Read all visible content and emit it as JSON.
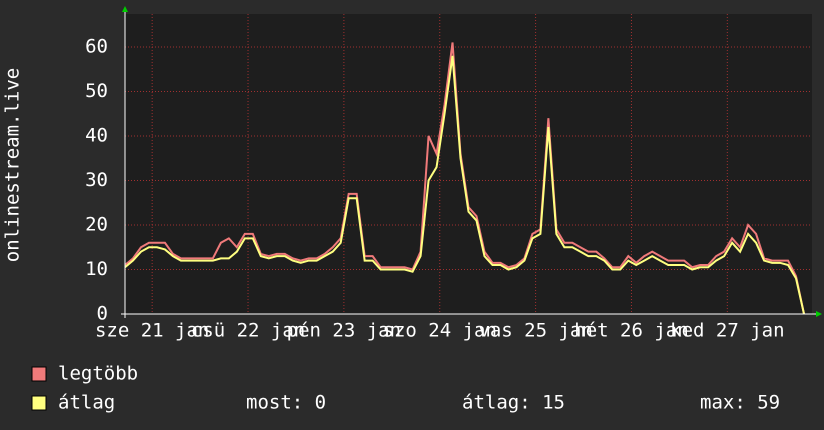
{
  "chart_data": {
    "type": "line",
    "y_label": "onlinestream.live",
    "xlim": [
      0,
      86
    ],
    "xticks": [
      {
        "value": 3.4,
        "label": "sze 21 jan"
      },
      {
        "value": 15.4,
        "label": "csü 22 jan"
      },
      {
        "value": 27.4,
        "label": "pén 23 jan"
      },
      {
        "value": 39.4,
        "label": "szo 24 jan"
      },
      {
        "value": 51.4,
        "label": "vas 25 jan"
      },
      {
        "value": 63.4,
        "label": "hét 26 jan"
      },
      {
        "value": 75.4,
        "label": "ked 27 jan"
      }
    ],
    "ylim": [
      0,
      67.4
    ],
    "yticks": [
      0,
      10,
      20,
      30,
      40,
      50,
      60
    ],
    "grid": true,
    "series": [
      {
        "name": "legtöbb",
        "color": "#f07a7a",
        "values": [
          11,
          12.5,
          15,
          16,
          16,
          16,
          13.5,
          12.5,
          12.5,
          12.5,
          12.5,
          12.5,
          16,
          17,
          15,
          18,
          18,
          13.5,
          13,
          13.5,
          13.5,
          12.5,
          12,
          12.5,
          12.5,
          13.5,
          15,
          17,
          27,
          27,
          13,
          13,
          10.5,
          10.5,
          10.5,
          10.5,
          10,
          14,
          40,
          36,
          47,
          61,
          36,
          24,
          22,
          14,
          11.5,
          11.5,
          10.5,
          11,
          12.5,
          18,
          19,
          44,
          19,
          16,
          16,
          15,
          14,
          14,
          12.5,
          10.5,
          10.5,
          13,
          11.5,
          13,
          14,
          13,
          12,
          12,
          12,
          10.5,
          11,
          11,
          13,
          14,
          17,
          15,
          20,
          18,
          12.5,
          12,
          12,
          12,
          8.5,
          0
        ]
      },
      {
        "name": "átlag",
        "color": "#ffff80",
        "values": [
          10.5,
          12,
          14,
          15,
          15,
          14.5,
          13,
          12,
          12,
          12,
          12,
          12,
          12.5,
          12.5,
          14,
          17,
          17,
          13,
          12.5,
          13,
          13,
          12,
          11.5,
          12,
          12,
          13,
          14,
          16,
          26,
          26,
          12,
          12,
          10,
          10,
          10,
          10,
          9.5,
          13,
          30,
          33,
          45,
          58,
          35,
          23,
          21,
          13,
          11,
          11,
          10,
          10.5,
          12,
          17,
          18,
          42,
          18,
          15,
          15,
          14,
          13,
          13,
          12,
          10,
          10,
          12,
          11,
          12,
          13,
          12,
          11,
          11,
          11,
          10,
          10.5,
          10.5,
          12,
          13,
          16,
          14,
          18,
          16,
          12,
          11.5,
          11.5,
          11,
          8,
          0
        ]
      }
    ],
    "stats": [
      "most: 0",
      "átlag: 15",
      "max: 59"
    ]
  }
}
